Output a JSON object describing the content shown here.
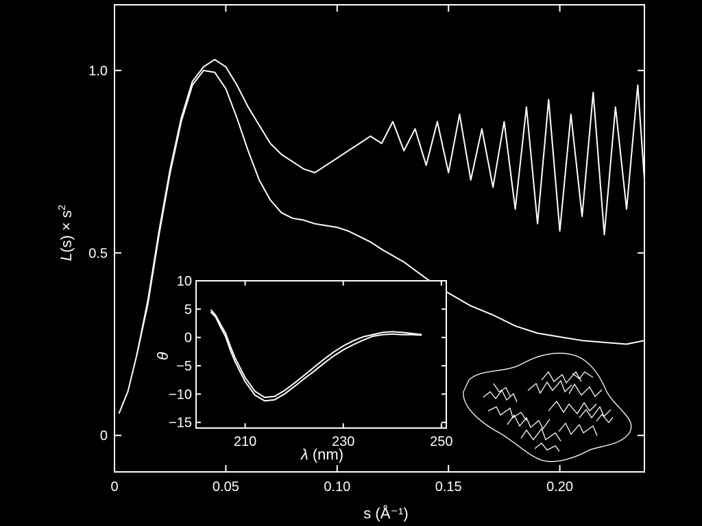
{
  "colors": {
    "background": "#000000",
    "foreground": "#ffffff"
  },
  "chart_data": [
    {
      "type": "line",
      "xlabel_var": "s",
      "xlabel_unit": "(Å⁻¹)",
      "ylabel_var": "L",
      "ylabel_rest": "(s) × s",
      "ylabel_sup": "2",
      "xlim": [
        0,
        0.238
      ],
      "ylim": [
        -0.1,
        1.18
      ],
      "xticks": [
        {
          "value": 0,
          "label": "0"
        },
        {
          "value": 0.05,
          "label": "0.05"
        },
        {
          "value": 0.1,
          "label": "0.10"
        },
        {
          "value": 0.15,
          "label": "0.15"
        },
        {
          "value": 0.2,
          "label": "0.20"
        }
      ],
      "yticks": [
        {
          "value": 0,
          "label": "0"
        },
        {
          "value": 0.5,
          "label": "0.5"
        },
        {
          "value": 1.0,
          "label": "1.0"
        }
      ],
      "series": [
        {
          "x": [
            0.002,
            0.006,
            0.01,
            0.015,
            0.02,
            0.025,
            0.03,
            0.035,
            0.04,
            0.045,
            0.05,
            0.055,
            0.06,
            0.065,
            0.07,
            0.075,
            0.08,
            0.085,
            0.09,
            0.095,
            0.1,
            0.105,
            0.11,
            0.115,
            0.12,
            0.13,
            0.14,
            0.15,
            0.16,
            0.17,
            0.18,
            0.19,
            0.2,
            0.21,
            0.22,
            0.23,
            0.238
          ],
          "y": [
            0.06,
            0.12,
            0.22,
            0.36,
            0.55,
            0.72,
            0.86,
            0.96,
            1.0,
            0.995,
            0.95,
            0.87,
            0.78,
            0.7,
            0.645,
            0.61,
            0.595,
            0.59,
            0.58,
            0.575,
            0.57,
            0.56,
            0.545,
            0.53,
            0.51,
            0.475,
            0.43,
            0.39,
            0.355,
            0.33,
            0.3,
            0.28,
            0.27,
            0.26,
            0.255,
            0.25,
            0.26
          ]
        },
        {
          "x": [
            0.01,
            0.015,
            0.02,
            0.025,
            0.03,
            0.035,
            0.04,
            0.045,
            0.05,
            0.055,
            0.06,
            0.065,
            0.07,
            0.075,
            0.08,
            0.085,
            0.09,
            0.095,
            0.1,
            0.105,
            0.11,
            0.115,
            0.12,
            0.125,
            0.13,
            0.135,
            0.14,
            0.145,
            0.15,
            0.155,
            0.16,
            0.165,
            0.17,
            0.175,
            0.18,
            0.185,
            0.19,
            0.195,
            0.2,
            0.205,
            0.21,
            0.215,
            0.22,
            0.225,
            0.23,
            0.235,
            0.238
          ],
          "y": [
            0.22,
            0.37,
            0.56,
            0.73,
            0.87,
            0.97,
            1.01,
            1.03,
            1.01,
            0.96,
            0.9,
            0.85,
            0.8,
            0.77,
            0.75,
            0.73,
            0.72,
            0.74,
            0.76,
            0.78,
            0.8,
            0.82,
            0.8,
            0.86,
            0.78,
            0.84,
            0.74,
            0.86,
            0.72,
            0.88,
            0.7,
            0.84,
            0.68,
            0.86,
            0.62,
            0.9,
            0.58,
            0.92,
            0.56,
            0.88,
            0.6,
            0.94,
            0.55,
            0.9,
            0.62,
            0.96,
            0.7
          ]
        }
      ]
    },
    {
      "type": "line",
      "xlabel_var": "λ",
      "xlabel_unit": "(nm)",
      "ylabel": "θ",
      "xlim": [
        200,
        251
      ],
      "ylim": [
        -16,
        10
      ],
      "xticks": [
        {
          "value": 210,
          "label": "210"
        },
        {
          "value": 230,
          "label": "230"
        },
        {
          "value": 250,
          "label": "250"
        }
      ],
      "yticks": [
        {
          "value": 10,
          "label": "10"
        },
        {
          "value": 5,
          "label": "5"
        },
        {
          "value": 0,
          "label": "0"
        },
        {
          "value": -5,
          "label": "−5"
        },
        {
          "value": -10,
          "label": "−10"
        },
        {
          "value": -15,
          "label": "−15"
        }
      ],
      "series": [
        {
          "x": [
            203,
            204,
            205,
            206,
            207,
            208,
            210,
            212,
            214,
            216,
            218,
            220,
            222,
            224,
            226,
            228,
            230,
            232,
            234,
            236,
            238,
            240,
            242,
            244,
            246
          ],
          "y": [
            4.5,
            3.6,
            1.8,
            0.2,
            -2.3,
            -4.4,
            -7.8,
            -10.2,
            -11.2,
            -11.0,
            -10.0,
            -8.7,
            -7.3,
            -6.0,
            -4.6,
            -3.3,
            -2.2,
            -1.3,
            -0.5,
            0.2,
            0.5,
            0.6,
            0.5,
            0.5,
            0.4
          ]
        },
        {
          "x": [
            203,
            204,
            205,
            206,
            207,
            208,
            210,
            212,
            214,
            216,
            218,
            220,
            222,
            224,
            226,
            228,
            230,
            232,
            234,
            236,
            238,
            240,
            242,
            244,
            246
          ],
          "y": [
            4.9,
            3.9,
            2.3,
            0.8,
            -1.6,
            -3.7,
            -7.1,
            -9.5,
            -10.6,
            -10.4,
            -9.4,
            -8.1,
            -6.7,
            -5.3,
            -3.9,
            -2.6,
            -1.5,
            -0.6,
            0.1,
            0.5,
            0.9,
            1.0,
            0.9,
            0.7,
            0.5
          ]
        }
      ]
    }
  ]
}
